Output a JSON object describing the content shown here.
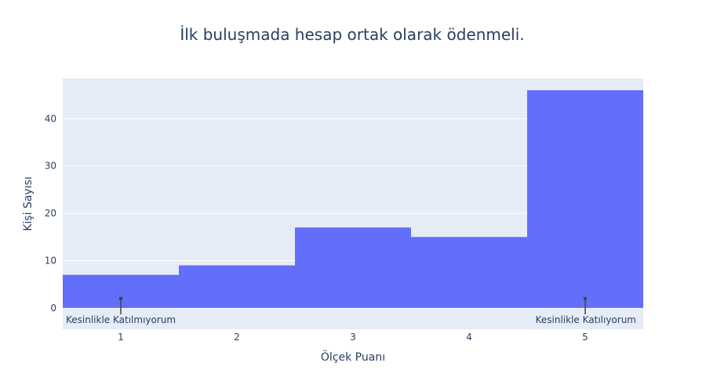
{
  "chart_data": {
    "type": "bar",
    "title": "İlk buluşmada hesap ortak olarak ödenmeli.",
    "xlabel": "Ölçek Puanı",
    "ylabel": "Kişi Sayısı",
    "categories": [
      "1",
      "2",
      "3",
      "4",
      "5"
    ],
    "values": [
      7,
      9,
      17,
      15,
      46
    ],
    "ylim": [
      -4.5,
      48.5
    ],
    "yticks": [
      0,
      10,
      20,
      30,
      40
    ],
    "grid": true,
    "bar_color": "#636efa",
    "plot_bg": "#e5ecf6",
    "annotations": [
      {
        "x": "1",
        "y": 2,
        "text": "Kesinlikle Katılmıyorum"
      },
      {
        "x": "5",
        "y": 2,
        "text": "Kesinlikle Katılıyorum"
      }
    ]
  }
}
